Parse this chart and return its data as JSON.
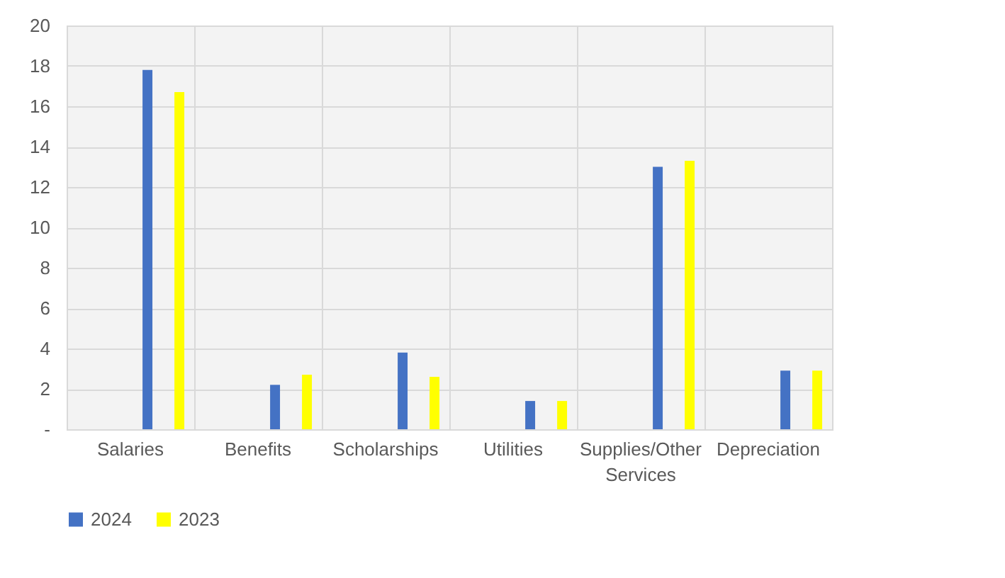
{
  "chart_data": {
    "type": "bar",
    "categories": [
      "Salaries",
      "Benefits",
      "Scholarships",
      "Utilities",
      "Supplies/Other Services",
      "Depreciation"
    ],
    "series": [
      {
        "name": "2024",
        "color": "#4472c4",
        "values": [
          17.8,
          2.2,
          3.8,
          1.4,
          13.0,
          2.9
        ]
      },
      {
        "name": "2023",
        "color": "#ffff00",
        "values": [
          16.7,
          2.7,
          2.6,
          1.4,
          13.3,
          2.9
        ]
      }
    ],
    "ylim": [
      0,
      20
    ],
    "yticks": [
      {
        "value": 0,
        "label": "-"
      },
      2,
      4,
      6,
      8,
      10,
      12,
      14,
      16,
      18,
      20
    ],
    "grid": true,
    "legend": "bottom"
  }
}
